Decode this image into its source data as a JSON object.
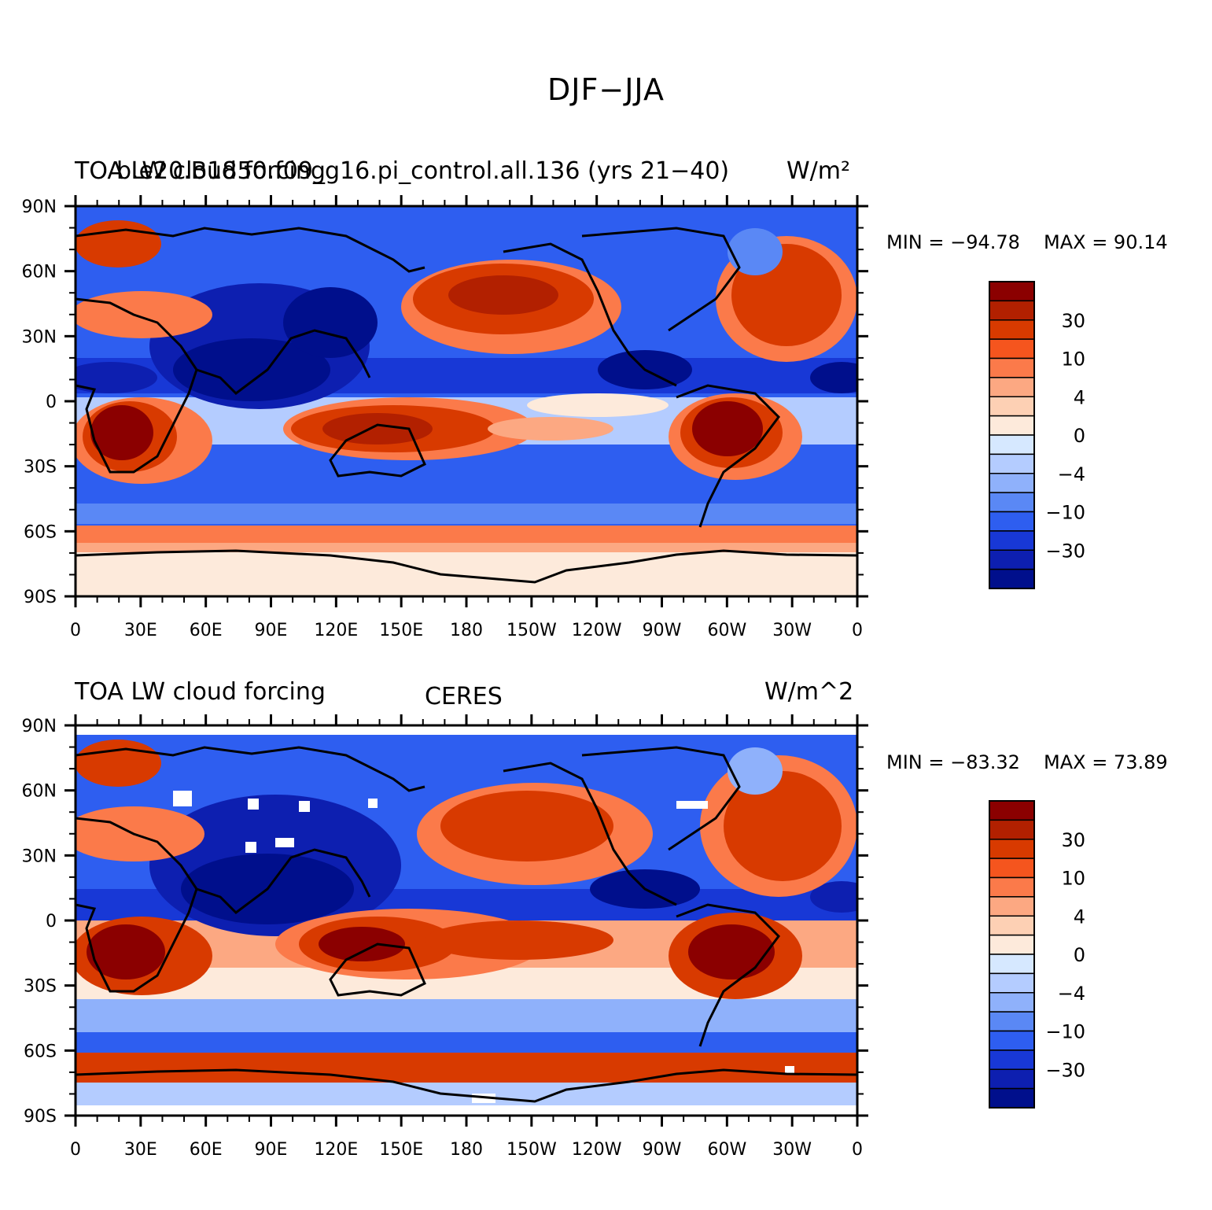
{
  "title": "DJF−JJA",
  "panels": [
    {
      "left_title": "TOA LW cloud forcing",
      "center_title": "b.e20.B1850.f09_g16.pi_control.all.136 (yrs 21−40)",
      "right_title": "W/m²",
      "min_label": "MIN = −94.78",
      "max_label": "MAX =   90.14"
    },
    {
      "left_title": "TOA LW cloud forcing",
      "center_title": "CERES",
      "right_title": "W/m^2",
      "min_label": "MIN = −83.32",
      "max_label": "MAX =   73.89"
    }
  ],
  "lat_ticks": [
    "90N",
    "60N",
    "30N",
    "0",
    "30S",
    "60S",
    "90S"
  ],
  "lon_ticks": [
    "0",
    "30E",
    "60E",
    "90E",
    "120E",
    "150E",
    "180",
    "150W",
    "120W",
    "90W",
    "60W",
    "30W",
    "0"
  ],
  "colorbar": {
    "colors": [
      "#8b0000",
      "#b22000",
      "#d83a00",
      "#f5551e",
      "#fb7a4a",
      "#fca882",
      "#fdd0b4",
      "#fdeadb",
      "#d6e8ff",
      "#b4ccff",
      "#8fb1fb",
      "#5a88f5",
      "#2e5ef0",
      "#1838d6",
      "#0d1fb0",
      "#000f8c"
    ],
    "labels": [
      "30",
      "10",
      "4",
      "0",
      "−4",
      "−10",
      "−30"
    ]
  }
}
